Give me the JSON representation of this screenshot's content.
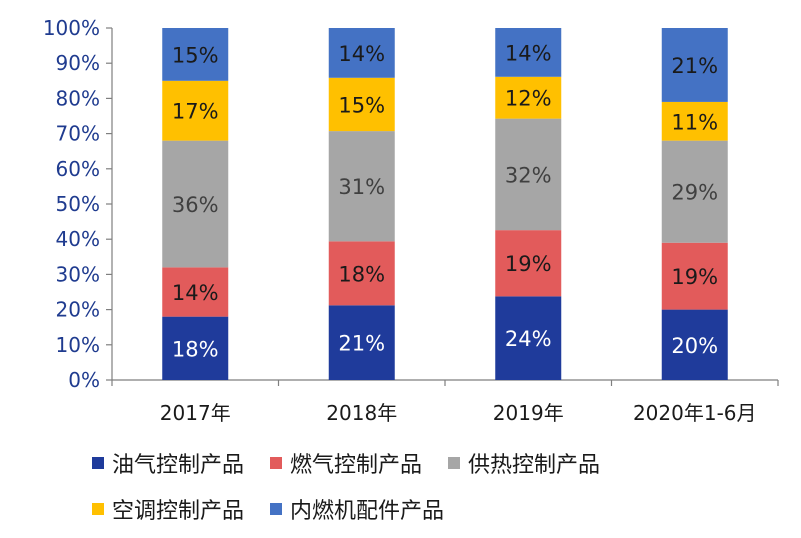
{
  "chart_data": {
    "type": "bar",
    "stacked": true,
    "title": "",
    "xlabel": "",
    "ylabel": "",
    "ylim": [
      0,
      100
    ],
    "yticks": [
      "0%",
      "10%",
      "20%",
      "30%",
      "40%",
      "50%",
      "60%",
      "70%",
      "80%",
      "90%",
      "100%"
    ],
    "categories": [
      "2017年",
      "2018年",
      "2019年",
      "2020年1-6月"
    ],
    "legend_position": "bottom",
    "grid": false,
    "series": [
      {
        "name": "油气控制产品",
        "color": "#1f3b9b",
        "label_color": "#ffffff",
        "values": [
          18,
          21,
          24,
          20
        ],
        "labels": [
          "18%",
          "21%",
          "24%",
          "20%"
        ]
      },
      {
        "name": "燃气控制产品",
        "color": "#e25b5b",
        "label_color": "#1a1a1a",
        "values": [
          14,
          18,
          19,
          19
        ],
        "labels": [
          "14%",
          "18%",
          "19%",
          "19%"
        ]
      },
      {
        "name": "供热控制产品",
        "color": "#a6a6a6",
        "label_color": "#404040",
        "values": [
          36,
          31,
          32,
          29
        ],
        "labels": [
          "36%",
          "31%",
          "32%",
          "29%"
        ]
      },
      {
        "name": "空调控制产品",
        "color": "#ffc000",
        "label_color": "#1a1a1a",
        "values": [
          17,
          15,
          12,
          11
        ],
        "labels": [
          "17%",
          "15%",
          "12%",
          "11%"
        ]
      },
      {
        "name": "内燃机配件产品",
        "color": "#4472c4",
        "label_color": "#1a1a1a",
        "values": [
          15,
          14,
          14,
          21
        ],
        "labels": [
          "15%",
          "14%",
          "14%",
          "21%"
        ]
      }
    ]
  }
}
